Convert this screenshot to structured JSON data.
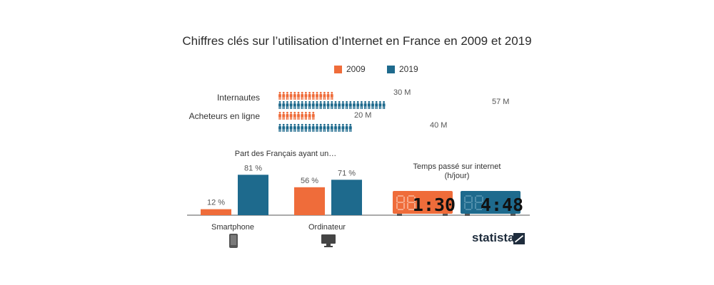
{
  "title": "Chiffres clés sur l’utilisation d’Internet en France en 2009 et 2019",
  "colors": {
    "y2009": "#ef6c3a",
    "y2019": "#1e6a8d",
    "device": "#555555",
    "digitOff2009": "#f7a888",
    "digitOff2019": "#4f8eab",
    "digitOn": "#111111"
  },
  "legend": [
    {
      "label": "2009",
      "color": "#ef6c3a"
    },
    {
      "label": "2019",
      "color": "#1e6a8d"
    }
  ],
  "chart_data": [
    {
      "type": "bar",
      "orientation": "horizontal",
      "unit": "M",
      "categories": [
        "Internautes",
        "Acheteurs en ligne"
      ],
      "series": [
        {
          "name": "2009",
          "values": [
            30,
            20
          ],
          "labels": [
            "30 M",
            "20 M"
          ]
        },
        {
          "name": "2019",
          "values": [
            57,
            40
          ],
          "labels": [
            "57 M",
            "40 M"
          ]
        }
      ]
    },
    {
      "type": "bar",
      "title": "Part des Français ayant un…",
      "unit": "%",
      "categories": [
        "Smartphone",
        "Ordinateur"
      ],
      "series": [
        {
          "name": "2009",
          "values": [
            12,
            56
          ],
          "labels": [
            "12 %",
            "56 %"
          ]
        },
        {
          "name": "2019",
          "values": [
            81,
            71
          ],
          "labels": [
            "81 %",
            "71 %"
          ]
        }
      ]
    },
    {
      "type": "table",
      "title": "Temps passé sur internet (h/jour)",
      "series": [
        {
          "name": "2009",
          "value": "1:30"
        },
        {
          "name": "2019",
          "value": "4:48"
        }
      ]
    }
  ],
  "time": {
    "title_line1": "Temps passé sur internet",
    "title_line2": "(h/jour)"
  },
  "icons": [
    "smartphone-icon",
    "computer-monitor-icon",
    "person-icon",
    "statista-logo-icon"
  ],
  "brand": "statista"
}
